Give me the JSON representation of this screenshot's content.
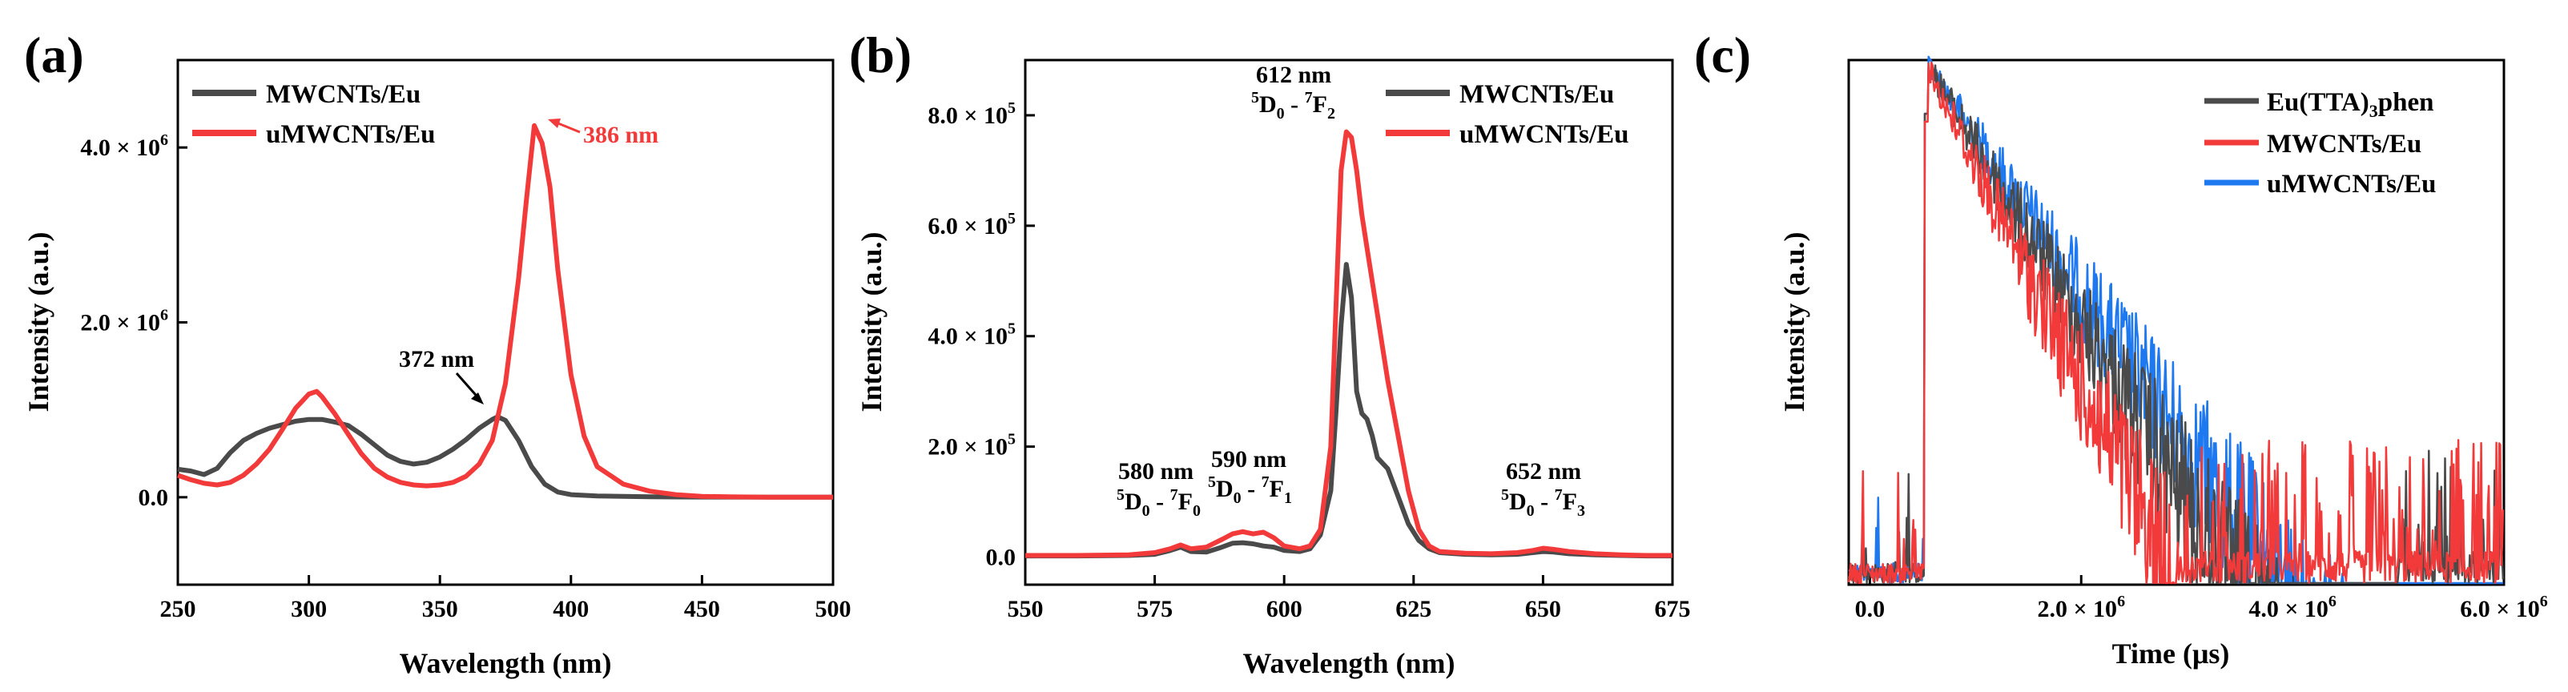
{
  "colors": {
    "black_series": "#4a4a4a",
    "red_series": "#f23a3a",
    "blue_series": "#1e78f0",
    "axis": "#000000"
  },
  "chart_data": [
    {
      "panel": "(a)",
      "type": "line",
      "xlabel": "Wavelength (nm)",
      "ylabel": "Intensity (a.u.)",
      "xlim": [
        250,
        500
      ],
      "ylim": [
        -1000000,
        5000000
      ],
      "xticks": [
        250,
        300,
        350,
        400,
        450,
        500
      ],
      "xtick_labels": [
        "250",
        "300",
        "350",
        "400",
        "450",
        "500"
      ],
      "yticks": [
        0,
        2000000,
        4000000
      ],
      "ytick_labels": [
        {
          "mant": "0.0",
          "exp": ""
        },
        {
          "mant": "2.0 × 10",
          "exp": "6"
        },
        {
          "mant": "4.0 × 10",
          "exp": "6"
        }
      ],
      "legend_position": "top-left",
      "series": [
        {
          "name": "MWCNTs/Eu",
          "color": "#4a4a4a",
          "x": [
            250,
            255,
            260,
            265,
            270,
            275,
            280,
            285,
            290,
            295,
            300,
            305,
            310,
            315,
            320,
            325,
            330,
            335,
            340,
            345,
            350,
            355,
            360,
            365,
            370,
            372,
            375,
            380,
            385,
            390,
            395,
            400,
            410,
            420,
            430,
            440,
            450,
            475,
            500
          ],
          "y": [
            320000,
            300000,
            260000,
            330000,
            510000,
            650000,
            730000,
            790000,
            830000,
            870000,
            890000,
            890000,
            860000,
            820000,
            720000,
            600000,
            480000,
            410000,
            380000,
            400000,
            460000,
            550000,
            660000,
            790000,
            890000,
            920000,
            880000,
            650000,
            350000,
            150000,
            60000,
            30000,
            15000,
            10000,
            5000,
            3000,
            2000,
            1000,
            0
          ]
        },
        {
          "name": "uMWCNTs/Eu",
          "color": "#f23a3a",
          "x": [
            250,
            255,
            260,
            265,
            270,
            275,
            280,
            285,
            290,
            295,
            300,
            303,
            305,
            310,
            315,
            320,
            325,
            330,
            335,
            340,
            345,
            350,
            355,
            360,
            365,
            370,
            375,
            380,
            383,
            386,
            389,
            392,
            395,
            400,
            405,
            410,
            420,
            430,
            440,
            450,
            460,
            475,
            500
          ],
          "y": [
            250000,
            200000,
            160000,
            140000,
            170000,
            250000,
            380000,
            550000,
            780000,
            1020000,
            1180000,
            1210000,
            1150000,
            950000,
            720000,
            500000,
            330000,
            230000,
            170000,
            140000,
            130000,
            140000,
            170000,
            240000,
            380000,
            650000,
            1300000,
            2500000,
            3400000,
            4250000,
            4050000,
            3550000,
            2600000,
            1400000,
            700000,
            350000,
            150000,
            70000,
            30000,
            10000,
            5000,
            0,
            0
          ]
        }
      ],
      "annotations": [
        {
          "text": "372 nm",
          "color": "#000000"
        },
        {
          "text": "386 nm",
          "color": "#f23a3a"
        }
      ]
    },
    {
      "panel": "(b)",
      "type": "line",
      "xlabel": "Wavelength (nm)",
      "ylabel": "Intensity (a.u.)",
      "xlim": [
        550,
        675
      ],
      "ylim": [
        -50000,
        900000
      ],
      "xticks": [
        550,
        575,
        600,
        625,
        650,
        675
      ],
      "xtick_labels": [
        "550",
        "575",
        "600",
        "625",
        "650",
        "675"
      ],
      "yticks": [
        0,
        200000,
        400000,
        600000,
        800000
      ],
      "ytick_labels": [
        {
          "mant": "0.0",
          "exp": ""
        },
        {
          "mant": "2.0 × 10",
          "exp": "5"
        },
        {
          "mant": "4.0 × 10",
          "exp": "5"
        },
        {
          "mant": "6.0 × 10",
          "exp": "5"
        },
        {
          "mant": "8.0 × 10",
          "exp": "5"
        }
      ],
      "legend_position": "top-right",
      "series": [
        {
          "name": "MWCNTs/Eu",
          "color": "#4a4a4a",
          "x": [
            550,
            560,
            570,
            575,
            578,
            580,
            582,
            585,
            588,
            590,
            592,
            594,
            596,
            598,
            600,
            603,
            605,
            607,
            609,
            610,
            611,
            612,
            613,
            614,
            615,
            616,
            617,
            618,
            619,
            620,
            622,
            624,
            626,
            628,
            630,
            635,
            640,
            645,
            648,
            650,
            652,
            655,
            660,
            665,
            670,
            675
          ],
          "y": [
            2000,
            2000,
            3000,
            5000,
            12000,
            18000,
            10000,
            9000,
            18000,
            25000,
            26000,
            24000,
            20000,
            18000,
            12000,
            10000,
            15000,
            40000,
            120000,
            260000,
            420000,
            530000,
            470000,
            300000,
            260000,
            250000,
            220000,
            180000,
            170000,
            160000,
            110000,
            60000,
            30000,
            15000,
            8000,
            5000,
            4000,
            5000,
            8000,
            10000,
            9000,
            6000,
            4000,
            3000,
            2000,
            2000
          ]
        },
        {
          "name": "uMWCNTs/Eu",
          "color": "#f23a3a",
          "x": [
            550,
            560,
            570,
            575,
            578,
            580,
            582,
            585,
            588,
            590,
            592,
            594,
            596,
            598,
            600,
            603,
            605,
            607,
            609,
            610,
            611,
            612,
            613,
            614,
            615,
            616,
            617,
            618,
            619,
            620,
            622,
            624,
            626,
            628,
            630,
            635,
            640,
            645,
            648,
            650,
            652,
            655,
            660,
            665,
            670,
            675
          ],
          "y": [
            3000,
            3000,
            4000,
            8000,
            15000,
            22000,
            15000,
            18000,
            32000,
            42000,
            46000,
            42000,
            45000,
            35000,
            20000,
            15000,
            20000,
            50000,
            200000,
            450000,
            700000,
            770000,
            760000,
            700000,
            620000,
            560000,
            500000,
            440000,
            380000,
            320000,
            220000,
            120000,
            50000,
            20000,
            10000,
            7000,
            6000,
            8000,
            12000,
            16000,
            14000,
            10000,
            6000,
            4000,
            3000,
            3000
          ]
        }
      ],
      "annotations": [
        {
          "text": "612 nm",
          "trans_upper": "5",
          "trans_mid": "D",
          "trans_sub1": "0",
          "trans_dash": " - ",
          "trans_upper2": "7",
          "trans_end": "F",
          "trans_sub2": "2"
        },
        {
          "text": "580 nm",
          "trans_upper": "5",
          "trans_mid": "D",
          "trans_sub1": "0",
          "trans_dash": " - ",
          "trans_upper2": "7",
          "trans_end": "F",
          "trans_sub2": "0"
        },
        {
          "text": "590 nm",
          "trans_upper": "5",
          "trans_mid": "D",
          "trans_sub1": "0",
          "trans_dash": " - ",
          "trans_upper2": "7",
          "trans_end": "F",
          "trans_sub2": "1"
        },
        {
          "text": "652 nm",
          "trans_upper": "5",
          "trans_mid": "D",
          "trans_sub1": "0",
          "trans_dash": " - ",
          "trans_upper2": "7",
          "trans_end": "F",
          "trans_sub2": "3"
        }
      ]
    },
    {
      "panel": "(c)",
      "type": "line",
      "xlabel": "Time (μs)",
      "ylabel": "Intensity (a.u.)",
      "yscale": "log",
      "xlim": [
        -200000,
        6000000
      ],
      "xticks": [
        0,
        2000000,
        4000000,
        6000000
      ],
      "xtick_labels": [
        {
          "mant": "0.0",
          "exp": ""
        },
        {
          "mant": "2.0 × 10",
          "exp": "6"
        },
        {
          "mant": "4.0 × 10",
          "exp": "6"
        },
        {
          "mant": "6.0 × 10",
          "exp": "6"
        }
      ],
      "legend_position": "top-right",
      "series": [
        {
          "name": "Eu(TTA)",
          "name_sub": "3",
          "name_tail": "phen",
          "color": "#4a4a4a",
          "onset": 520000,
          "rise_to": 550000,
          "peak": 1.0,
          "decay_tau": 1000000,
          "cutoff": 5000000
        },
        {
          "name": "MWCNTs/Eu",
          "color": "#f23a3a",
          "onset": 520000,
          "rise_to": 550000,
          "peak": 0.95,
          "decay_tau": 820000,
          "cutoff": 2900000
        },
        {
          "name": "uMWCNTs/Eu",
          "color": "#1e78f0",
          "onset": 520000,
          "rise_to": 550000,
          "peak": 1.0,
          "decay_tau": 1150000,
          "cutoff": 6000000
        }
      ]
    }
  ]
}
